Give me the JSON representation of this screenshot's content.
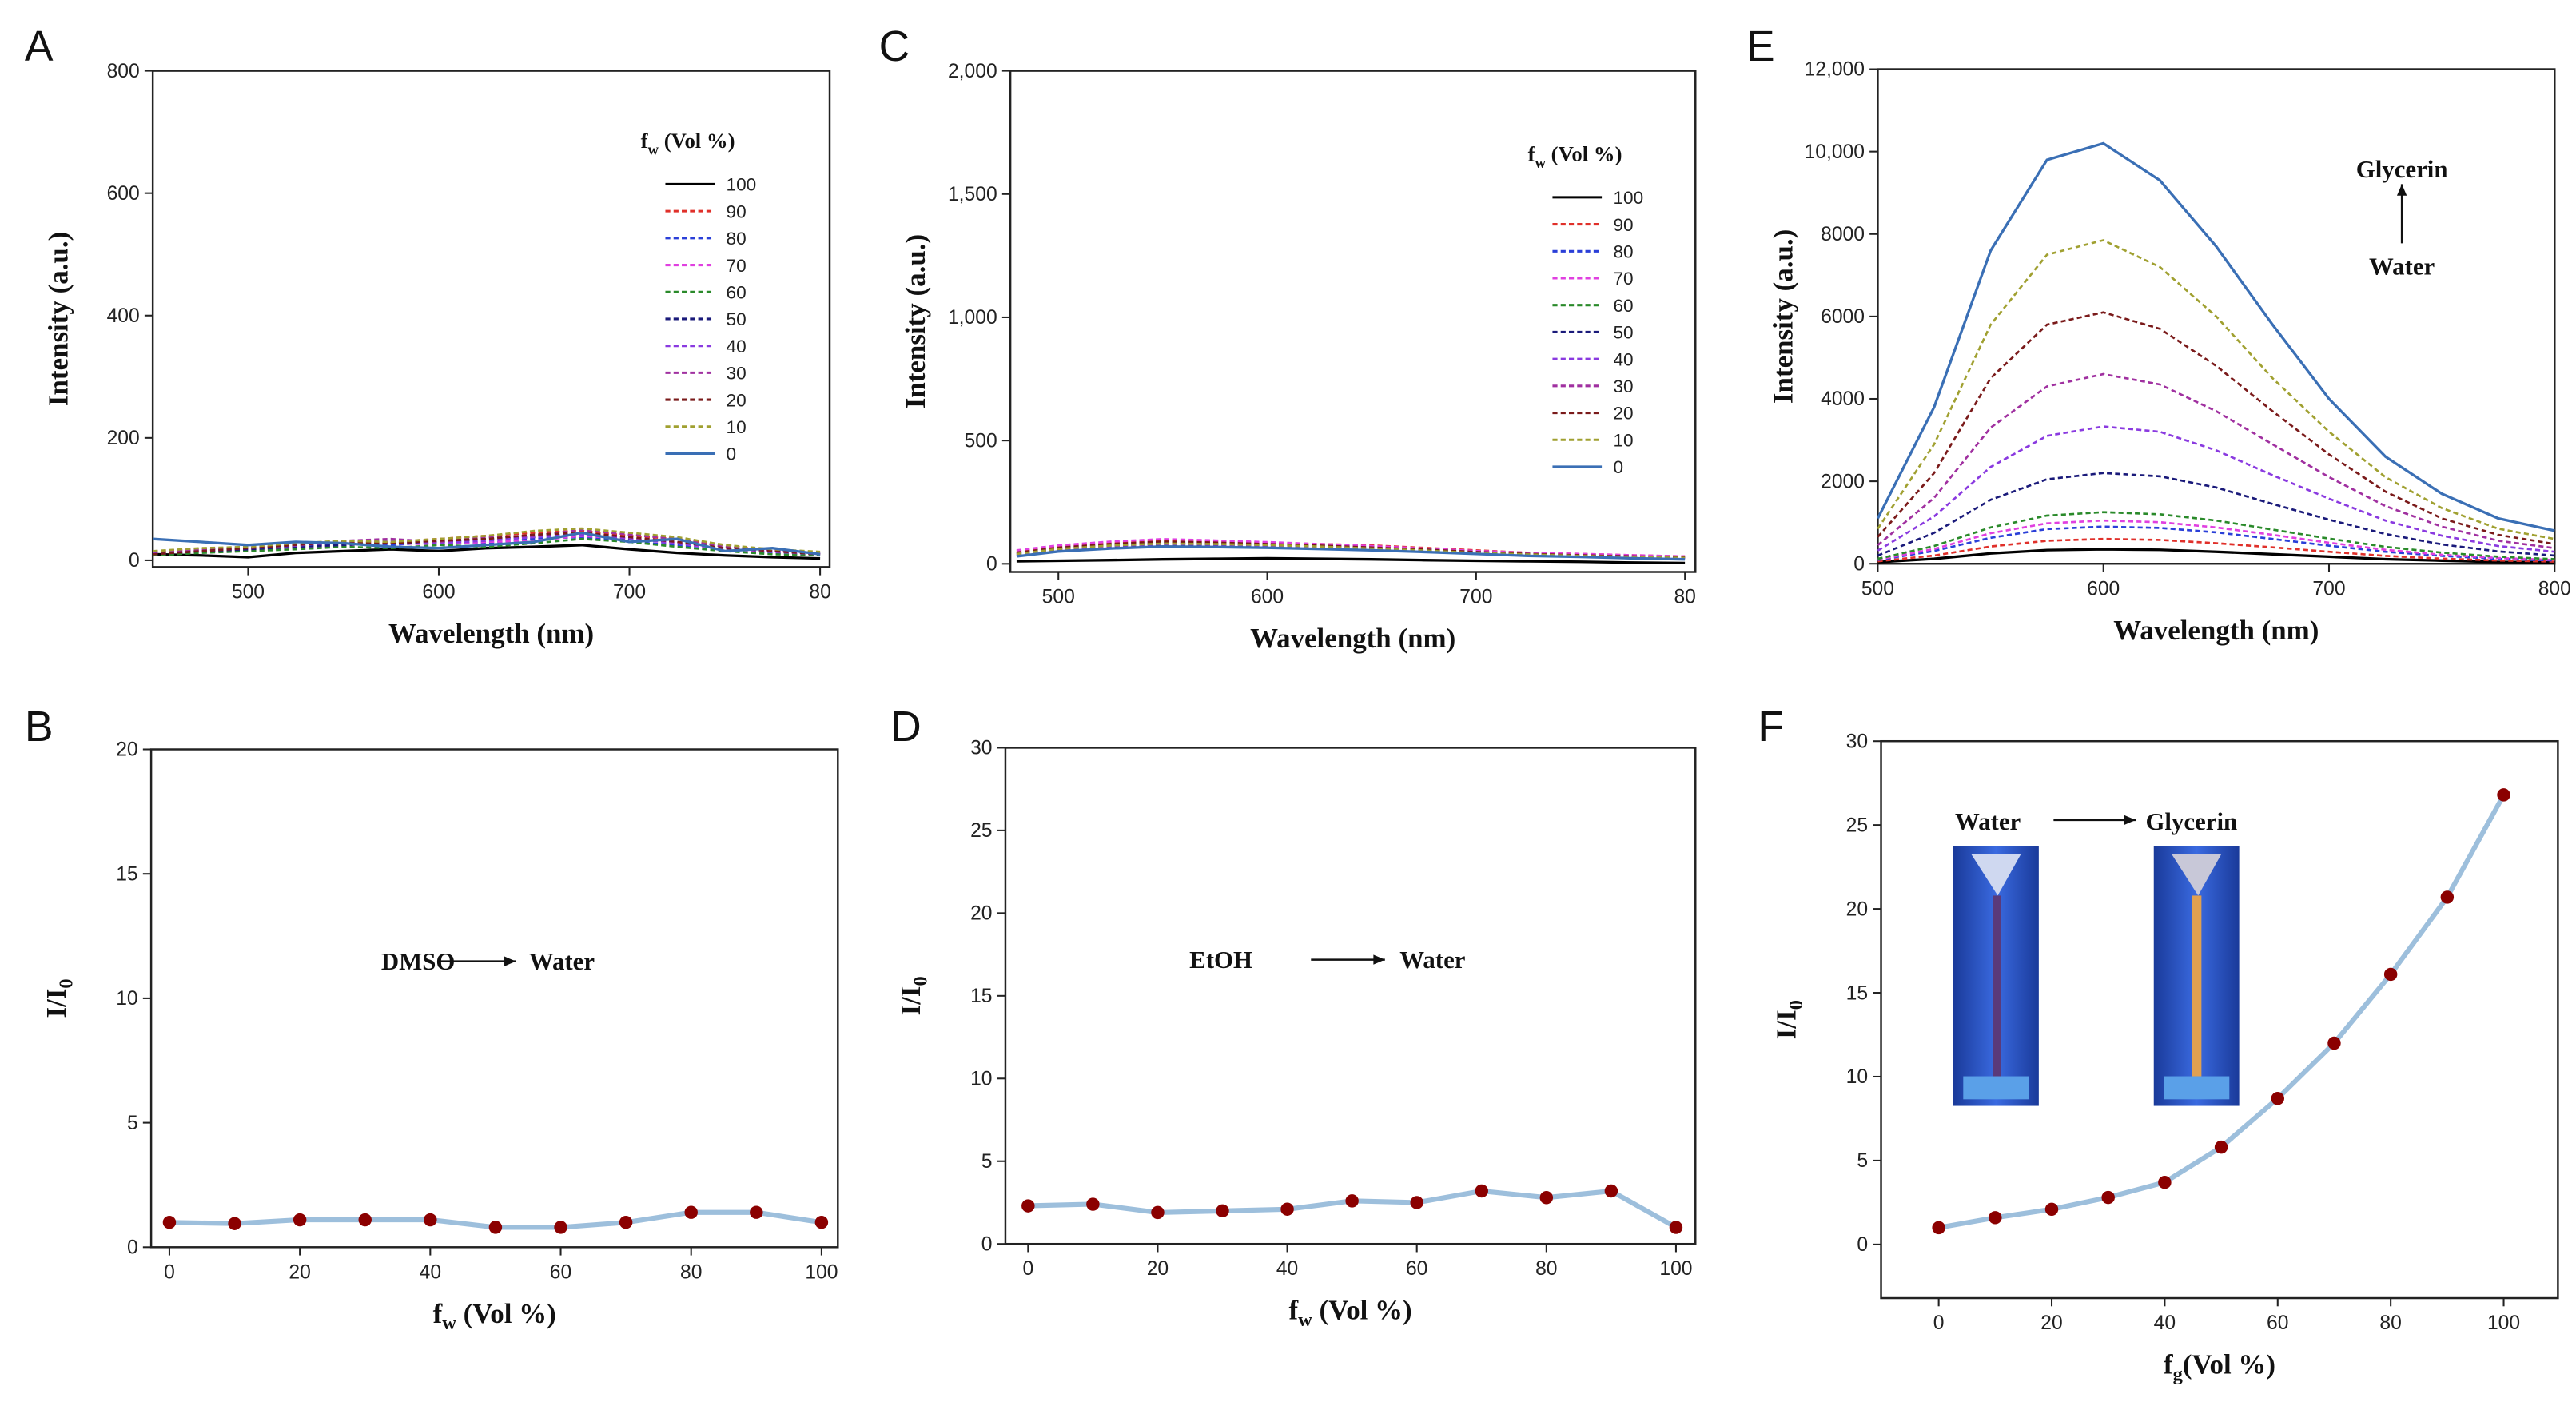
{
  "chart_data": [
    {
      "type": "spectra",
      "panel": "A",
      "x_label": [
        "Wavelength (nm)"
      ],
      "y_label": [
        "Intensity (a.u.)"
      ],
      "legend_title": [
        "f",
        "w",
        " (Vol %)"
      ],
      "x": [
        450,
        475,
        500,
        525,
        550,
        575,
        600,
        625,
        650,
        675,
        700,
        725,
        750,
        775,
        800
      ],
      "xlim": [
        450,
        805
      ],
      "ylim": [
        -11,
        800
      ],
      "xticks": [
        500,
        600,
        700,
        {
          "value": 800,
          "label": "80"
        }
      ],
      "yticks": [
        0,
        200,
        400,
        600,
        800
      ],
      "series": [
        {
          "name": "100",
          "color": "#000000",
          "style": "solid",
          "values": [
            10,
            8,
            5,
            12,
            15,
            18,
            15,
            20,
            22,
            25,
            18,
            12,
            8,
            5,
            3
          ]
        },
        {
          "name": "90",
          "color": "#e0302a",
          "style": "dashed",
          "values": [
            15,
            18,
            20,
            25,
            28,
            30,
            35,
            40,
            45,
            48,
            40,
            35,
            25,
            15,
            10
          ]
        },
        {
          "name": "80",
          "color": "#2a3fd8",
          "style": "dashed",
          "values": [
            12,
            15,
            18,
            22,
            28,
            25,
            30,
            28,
            35,
            38,
            30,
            25,
            20,
            12,
            8
          ]
        },
        {
          "name": "70",
          "color": "#e040e0",
          "style": "dashed",
          "values": [
            10,
            14,
            16,
            20,
            25,
            28,
            26,
            30,
            32,
            40,
            35,
            28,
            18,
            14,
            10
          ]
        },
        {
          "name": "60",
          "color": "#2a8a2a",
          "style": "dashed",
          "values": [
            8,
            12,
            15,
            18,
            22,
            20,
            25,
            22,
            28,
            35,
            30,
            22,
            15,
            10,
            8
          ]
        },
        {
          "name": "50",
          "color": "#1a1a7a",
          "style": "dashed",
          "values": [
            10,
            15,
            18,
            22,
            25,
            28,
            30,
            35,
            38,
            45,
            35,
            30,
            20,
            15,
            12
          ]
        },
        {
          "name": "40",
          "color": "#8a3ae0",
          "style": "dashed",
          "values": [
            12,
            16,
            20,
            24,
            30,
            32,
            28,
            32,
            38,
            42,
            36,
            28,
            20,
            14,
            10
          ]
        },
        {
          "name": "30",
          "color": "#a030a0",
          "style": "dashed",
          "values": [
            14,
            18,
            22,
            26,
            32,
            35,
            30,
            38,
            40,
            50,
            42,
            35,
            22,
            16,
            12
          ]
        },
        {
          "name": "20",
          "color": "#7a1a1a",
          "style": "dashed",
          "values": [
            10,
            15,
            20,
            25,
            30,
            28,
            32,
            35,
            42,
            45,
            38,
            30,
            20,
            15,
            10
          ]
        },
        {
          "name": "10",
          "color": "#a0a030",
          "style": "dashed",
          "values": [
            15,
            20,
            22,
            28,
            32,
            30,
            35,
            40,
            48,
            52,
            45,
            38,
            25,
            18,
            14
          ]
        },
        {
          "name": "0",
          "color": "#3a6fb5",
          "style": "solid",
          "values": [
            35,
            30,
            25,
            30,
            28,
            22,
            20,
            25,
            30,
            45,
            30,
            35,
            15,
            20,
            10
          ]
        }
      ]
    },
    {
      "type": "markerline",
      "panel": "B",
      "x_label": [
        "f",
        "w",
        " (Vol %)"
      ],
      "y_label": [
        "I/I",
        "0"
      ],
      "x": [
        0,
        10,
        20,
        30,
        40,
        50,
        60,
        70,
        80,
        90,
        100
      ],
      "values": [
        1.0,
        0.95,
        1.1,
        1.1,
        1.1,
        0.8,
        0.8,
        1.0,
        1.4,
        1.4,
        1.0
      ],
      "color": "#9dbfdc",
      "marker_color": "#8b0000",
      "xlim": [
        -2.8,
        102.5
      ],
      "ylim": [
        0,
        20
      ],
      "xticks": [
        0,
        20,
        40,
        60,
        80,
        100
      ],
      "yticks": [
        0,
        5,
        10,
        15,
        20
      ],
      "annotations": [
        "DMSO",
        "Water"
      ]
    },
    {
      "type": "spectra",
      "panel": "C",
      "x_label": [
        "Wavelength (nm)"
      ],
      "y_label": [
        "Intensity (a.u.)"
      ],
      "legend_title": [
        "f",
        "w",
        " (Vol %)"
      ],
      "x": [
        480,
        500,
        525,
        550,
        575,
        600,
        625,
        650,
        675,
        700,
        725,
        750,
        775,
        800
      ],
      "xlim": [
        477,
        805
      ],
      "ylim": [
        -33,
        2000
      ],
      "xticks": [
        500,
        600,
        700,
        {
          "value": 800,
          "label": "80"
        }
      ],
      "yticks": [
        0,
        500,
        {
          "value": 1000,
          "label": "1,000"
        },
        {
          "value": 1500,
          "label": "1,500"
        },
        {
          "value": 2000,
          "label": "2,000"
        }
      ],
      "series": [
        {
          "name": "100",
          "color": "#000000",
          "style": "solid",
          "values": [
            10,
            12,
            15,
            18,
            20,
            22,
            20,
            18,
            15,
            12,
            10,
            8,
            5,
            3
          ]
        },
        {
          "name": "90",
          "color": "#e0302a",
          "style": "dashed",
          "values": [
            50,
            70,
            85,
            95,
            92,
            85,
            80,
            75,
            65,
            55,
            45,
            40,
            35,
            30
          ]
        },
        {
          "name": "80",
          "color": "#2a3fd8",
          "style": "dashed",
          "values": [
            45,
            65,
            80,
            88,
            85,
            80,
            75,
            68,
            60,
            50,
            42,
            38,
            32,
            28
          ]
        },
        {
          "name": "70",
          "color": "#e040e0",
          "style": "dashed",
          "values": [
            55,
            75,
            90,
            100,
            95,
            88,
            80,
            72,
            62,
            52,
            45,
            40,
            35,
            30
          ]
        },
        {
          "name": "60",
          "color": "#2a8a2a",
          "style": "dashed",
          "values": [
            40,
            60,
            75,
            82,
            80,
            75,
            70,
            62,
            55,
            45,
            38,
            32,
            28,
            25
          ]
        },
        {
          "name": "50",
          "color": "#1a1a7a",
          "style": "dashed",
          "values": [
            35,
            55,
            70,
            78,
            76,
            72,
            68,
            60,
            52,
            42,
            35,
            30,
            25,
            22
          ]
        },
        {
          "name": "40",
          "color": "#8a3ae0",
          "style": "dashed",
          "values": [
            38,
            58,
            72,
            80,
            78,
            74,
            68,
            60,
            52,
            44,
            36,
            32,
            26,
            22
          ]
        },
        {
          "name": "30",
          "color": "#a030a0",
          "style": "dashed",
          "values": [
            42,
            62,
            78,
            85,
            82,
            78,
            72,
            65,
            56,
            46,
            40,
            34,
            28,
            24
          ]
        },
        {
          "name": "20",
          "color": "#7a1a1a",
          "style": "dashed",
          "values": [
            45,
            65,
            80,
            90,
            86,
            80,
            74,
            66,
            58,
            48,
            40,
            35,
            30,
            26
          ]
        },
        {
          "name": "10",
          "color": "#a0a030",
          "style": "dashed",
          "values": [
            40,
            60,
            74,
            82,
            80,
            76,
            70,
            62,
            54,
            44,
            38,
            32,
            28,
            24
          ]
        },
        {
          "name": "0",
          "color": "#3a6fb5",
          "style": "solid",
          "values": [
            30,
            50,
            62,
            70,
            68,
            65,
            60,
            55,
            48,
            40,
            32,
            28,
            22,
            18
          ]
        }
      ]
    },
    {
      "type": "markerline",
      "panel": "D",
      "x_label": [
        "f",
        "w",
        " (Vol %)"
      ],
      "y_label": [
        "I/I",
        "0"
      ],
      "x": [
        0,
        10,
        20,
        30,
        40,
        50,
        60,
        70,
        80,
        90,
        100
      ],
      "values": [
        2.3,
        2.4,
        1.9,
        2.0,
        2.1,
        2.6,
        2.5,
        3.2,
        2.8,
        3.2,
        1.0
      ],
      "color": "#9dbfdc",
      "marker_color": "#8b0000",
      "xlim": [
        -3.5,
        103
      ],
      "ylim": [
        0,
        30
      ],
      "xticks": [
        0,
        20,
        40,
        60,
        80,
        100
      ],
      "yticks": [
        0,
        5,
        10,
        15,
        20,
        25,
        30
      ],
      "annotations": [
        "EtOH",
        "Water"
      ]
    },
    {
      "type": "spectra",
      "panel": "E",
      "x_label": [
        "Wavelength (nm)"
      ],
      "y_label": [
        "Intensity (a.u.)"
      ],
      "x": [
        500,
        525,
        550,
        575,
        600,
        625,
        650,
        675,
        700,
        725,
        750,
        775,
        800
      ],
      "xlim": [
        500,
        800
      ],
      "ylim": [
        0,
        12000
      ],
      "xticks": [
        500,
        600,
        700,
        800
      ],
      "yticks": [
        0,
        2000,
        4000,
        6000,
        8000,
        {
          "value": 10000,
          "label": "10,000"
        },
        {
          "value": 12000,
          "label": "12,000"
        }
      ],
      "annotations": [
        "Glycerin",
        "Water"
      ],
      "series": [
        {
          "color": "#000000",
          "style": "solid",
          "values": [
            40,
            120,
            250,
            330,
            350,
            340,
            290,
            230,
            170,
            110,
            75,
            45,
            30
          ]
        },
        {
          "color": "#e0302a",
          "style": "dashed",
          "values": [
            60,
            200,
            420,
            560,
            600,
            580,
            500,
            400,
            290,
            190,
            125,
            80,
            50
          ]
        },
        {
          "color": "#2a3fd8",
          "style": "dashed",
          "values": [
            90,
            310,
            630,
            840,
            900,
            870,
            760,
            600,
            440,
            290,
            190,
            120,
            80
          ]
        },
        {
          "color": "#e040e0",
          "style": "dashed",
          "values": [
            100,
            360,
            740,
            980,
            1050,
            1010,
            880,
            700,
            510,
            340,
            220,
            140,
            90
          ]
        },
        {
          "color": "#2a8a2a",
          "style": "dashed",
          "values": [
            120,
            430,
            880,
            1170,
            1250,
            1200,
            1050,
            830,
            610,
            410,
            270,
            170,
            110
          ]
        },
        {
          "color": "#1a1a7a",
          "style": "dashed",
          "values": [
            200,
            750,
            1550,
            2050,
            2200,
            2120,
            1850,
            1450,
            1070,
            720,
            470,
            300,
            200
          ]
        },
        {
          "color": "#8a3ae0",
          "style": "dashed",
          "values": [
            320,
            1150,
            2350,
            3100,
            3330,
            3200,
            2750,
            2150,
            1580,
            1050,
            680,
            430,
            290
          ]
        },
        {
          "color": "#a030a0",
          "style": "dashed",
          "values": [
            450,
            1600,
            3300,
            4300,
            4600,
            4350,
            3700,
            2900,
            2100,
            1400,
            900,
            560,
            380
          ]
        },
        {
          "color": "#7a1a1a",
          "style": "dashed",
          "values": [
            650,
            2200,
            4500,
            5800,
            6100,
            5700,
            4800,
            3700,
            2650,
            1750,
            1100,
            700,
            480
          ]
        },
        {
          "color": "#a0a030",
          "style": "dashed",
          "values": [
            850,
            2900,
            5800,
            7500,
            7850,
            7200,
            6000,
            4500,
            3200,
            2100,
            1350,
            850,
            600
          ]
        },
        {
          "color": "#3a6fb5",
          "style": "solid",
          "values": [
            1100,
            3800,
            7600,
            9800,
            10200,
            9300,
            7700,
            5800,
            4000,
            2600,
            1700,
            1100,
            800
          ]
        }
      ]
    },
    {
      "type": "markerline",
      "panel": "F",
      "x_label": [
        "f",
        "g",
        "(Vol %)"
      ],
      "y_label": [
        "I/I",
        "0"
      ],
      "x": [
        0,
        10,
        20,
        30,
        40,
        50,
        60,
        70,
        80,
        90,
        100
      ],
      "values": [
        1.0,
        1.6,
        2.1,
        2.8,
        3.7,
        5.8,
        8.7,
        12.0,
        16.1,
        20.7,
        26.8
      ],
      "color": "#9dbfdc",
      "marker_color": "#8b0000",
      "xlim": [
        -10.2,
        109.6
      ],
      "ylim": [
        -3.2,
        30
      ],
      "xticks": [
        0,
        20,
        40,
        60,
        80,
        100
      ],
      "yticks": [
        0,
        5,
        10,
        15,
        20,
        25,
        30
      ],
      "annotations": [
        "Water",
        "Glycerin"
      ]
    }
  ]
}
